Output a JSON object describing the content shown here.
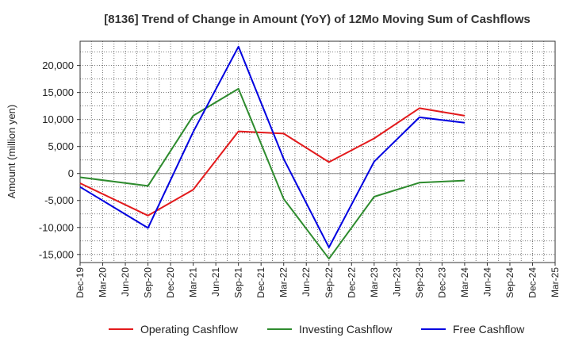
{
  "chart_data": {
    "type": "line",
    "title": "[8136]  Trend of Change in Amount (YoY) of 12Mo Moving Sum of Cashflows",
    "xlabel": "",
    "ylabel": "Amount (million yen)",
    "ylim": [
      -16500,
      24500
    ],
    "yticks": [
      -15000,
      -10000,
      -5000,
      0,
      5000,
      10000,
      15000,
      20000
    ],
    "ytick_labels": [
      "-15,000",
      "-10,000",
      "-5,000",
      "0",
      "5,000",
      "10,000",
      "15,000",
      "20,000"
    ],
    "categories": [
      "Dec-19",
      "Mar-20",
      "Jun-20",
      "Sep-20",
      "Dec-20",
      "Mar-21",
      "Jun-21",
      "Sep-21",
      "Dec-21",
      "Mar-22",
      "Jun-22",
      "Sep-22",
      "Dec-22",
      "Mar-23",
      "Jun-23",
      "Sep-23",
      "Dec-23",
      "Mar-24",
      "Jun-24",
      "Sep-24",
      "Dec-24",
      "Mar-25"
    ],
    "grid": true,
    "legend_position": "bottom",
    "series": [
      {
        "name": "Operating Cashflow",
        "color": "#e31a1c",
        "values": [
          -1800,
          null,
          null,
          -7800,
          null,
          -3000,
          null,
          7800,
          null,
          7400,
          null,
          2100,
          null,
          6500,
          null,
          12100,
          null,
          10700,
          null,
          null,
          null,
          null
        ]
      },
      {
        "name": "Investing Cashflow",
        "color": "#2e8b2e",
        "values": [
          -700,
          null,
          null,
          -2300,
          null,
          10700,
          null,
          15700,
          null,
          -4700,
          null,
          -15800,
          null,
          -4300,
          null,
          -1700,
          null,
          -1300,
          null,
          null,
          null,
          null
        ]
      },
      {
        "name": "Free Cashflow",
        "color": "#0000e0",
        "values": [
          -2500,
          null,
          null,
          -10100,
          null,
          7700,
          null,
          23500,
          null,
          2700,
          null,
          -13700,
          null,
          2200,
          null,
          10400,
          null,
          9400,
          null,
          null,
          null,
          null
        ]
      }
    ]
  }
}
